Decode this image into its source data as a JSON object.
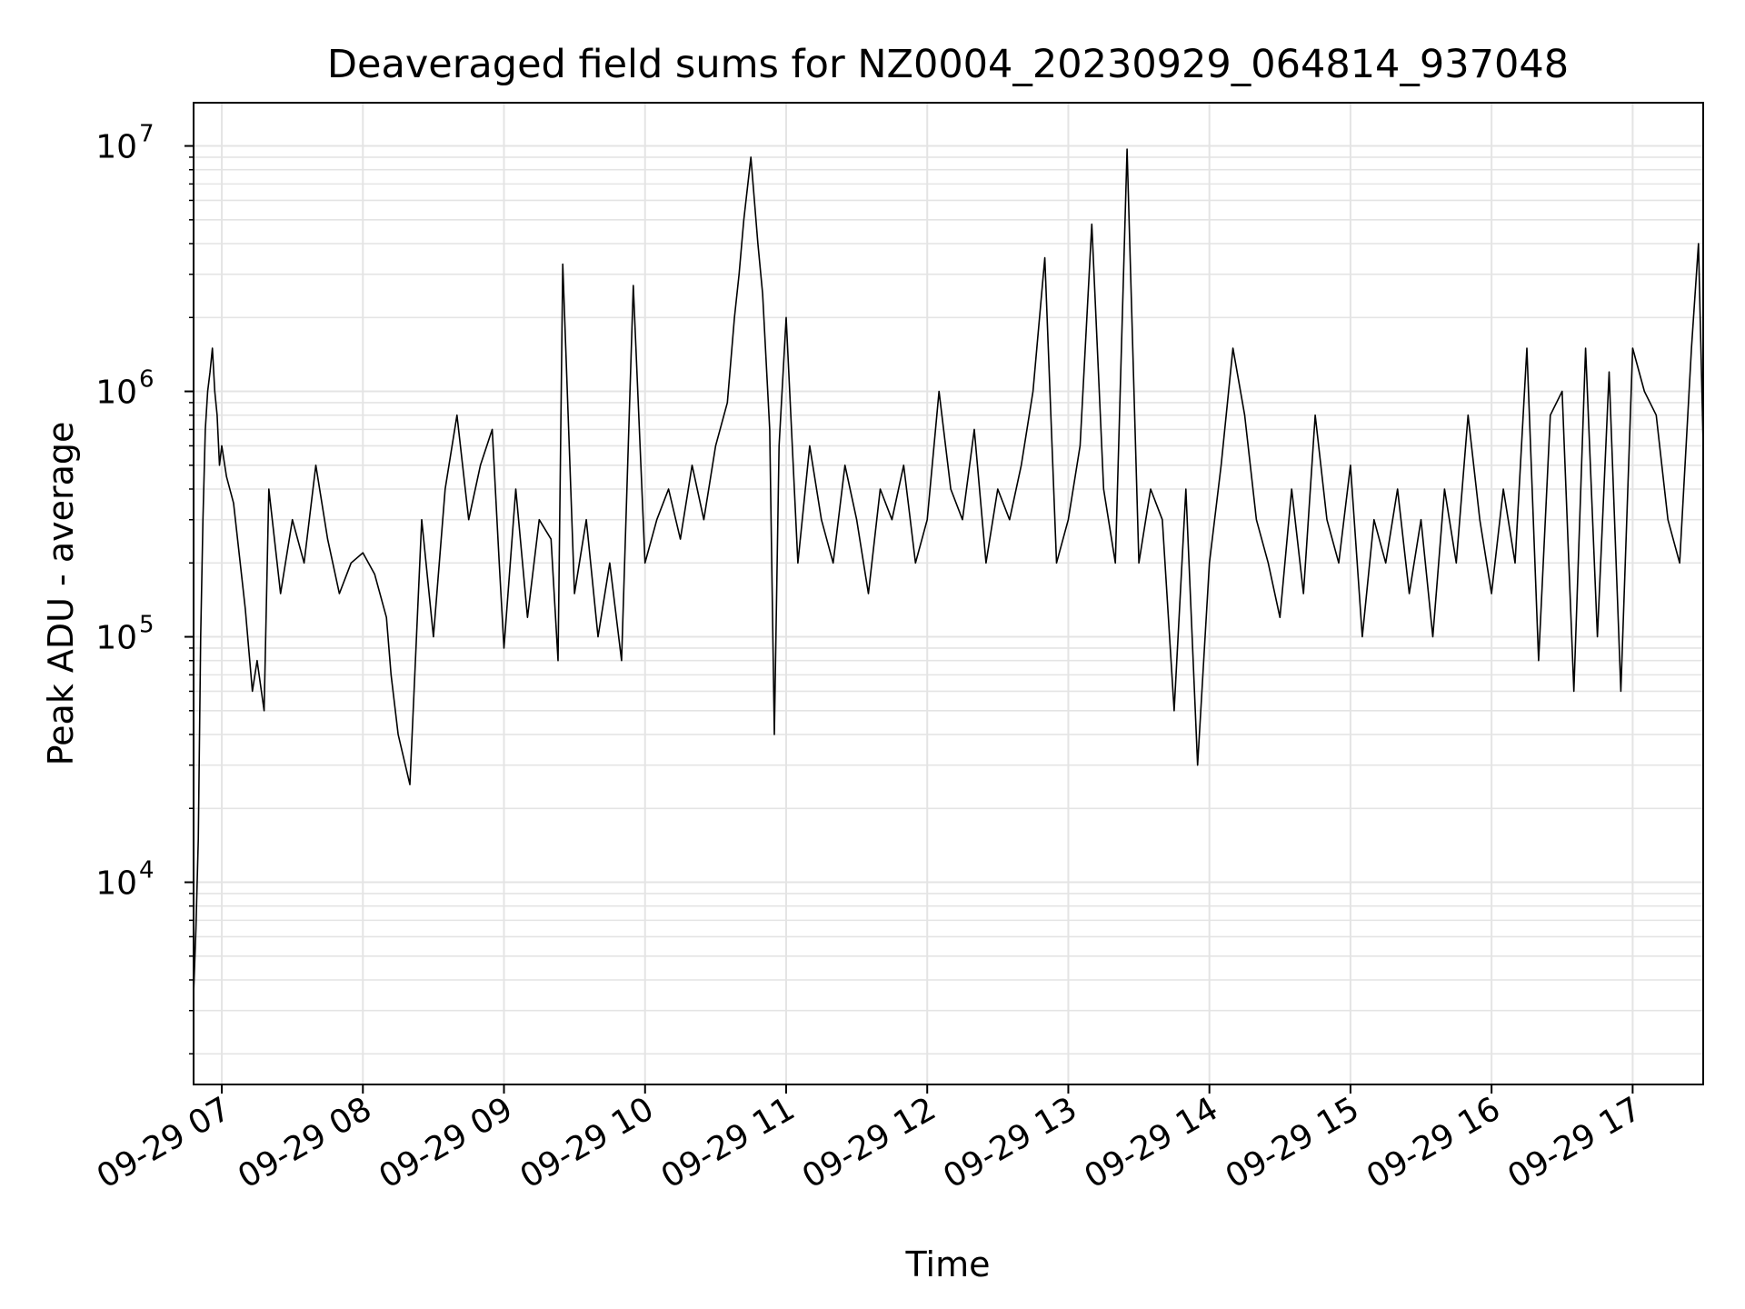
{
  "chart_data": {
    "type": "line",
    "title": "Deaveraged field sums for NZ0004_20230929_064814_937048",
    "xlabel": "Time",
    "ylabel": "Peak ADU - average",
    "yscale": "log",
    "ylim": [
      1500,
      15000000
    ],
    "xlim": [
      "2023-09-29 06:48",
      "2023-09-29 17:30"
    ],
    "grid": true,
    "line_color": "#000000",
    "x_ticks": [
      "2023-09-29 07:00",
      "2023-09-29 08:00",
      "2023-09-29 09:00",
      "2023-09-29 10:00",
      "2023-09-29 11:00",
      "2023-09-29 12:00",
      "2023-09-29 13:00",
      "2023-09-29 14:00",
      "2023-09-29 15:00",
      "2023-09-29 16:00",
      "2023-09-29 17:00"
    ],
    "x_tick_labels": [
      "09-29 07",
      "09-29 08",
      "09-29 09",
      "09-29 10",
      "09-29 11",
      "09-29 12",
      "09-29 13",
      "09-29 14",
      "09-29 15",
      "09-29 16",
      "09-29 17"
    ],
    "y_ticks": [
      10000,
      100000,
      1000000,
      10000000
    ],
    "y_tick_labels": [
      {
        "base": "10",
        "exp": "4"
      },
      {
        "base": "10",
        "exp": "5"
      },
      {
        "base": "10",
        "exp": "6"
      },
      {
        "base": "10",
        "exp": "7"
      }
    ],
    "series": [
      {
        "x": [
          "2023-09-29 06:48",
          "2023-09-29 06:49",
          "2023-09-29 06:50",
          "2023-09-29 06:51",
          "2023-09-29 06:52",
          "2023-09-29 06:53",
          "2023-09-29 06:54",
          "2023-09-29 06:55",
          "2023-09-29 06:56",
          "2023-09-29 06:57",
          "2023-09-29 06:58",
          "2023-09-29 06:59",
          "2023-09-29 07:00",
          "2023-09-29 07:02",
          "2023-09-29 07:05",
          "2023-09-29 07:10",
          "2023-09-29 07:13",
          "2023-09-29 07:15",
          "2023-09-29 07:18",
          "2023-09-29 07:20",
          "2023-09-29 07:25",
          "2023-09-29 07:30",
          "2023-09-29 07:35",
          "2023-09-29 07:40",
          "2023-09-29 07:45",
          "2023-09-29 07:50",
          "2023-09-29 07:55",
          "2023-09-29 08:00",
          "2023-09-29 08:05",
          "2023-09-29 08:10",
          "2023-09-29 08:12",
          "2023-09-29 08:15",
          "2023-09-29 08:20",
          "2023-09-29 08:25",
          "2023-09-29 08:30",
          "2023-09-29 08:35",
          "2023-09-29 08:40",
          "2023-09-29 08:45",
          "2023-09-29 08:50",
          "2023-09-29 08:55",
          "2023-09-29 08:58",
          "2023-09-29 09:00",
          "2023-09-29 09:05",
          "2023-09-29 09:10",
          "2023-09-29 09:15",
          "2023-09-29 09:20",
          "2023-09-29 09:23",
          "2023-09-29 09:25",
          "2023-09-29 09:30",
          "2023-09-29 09:35",
          "2023-09-29 09:40",
          "2023-09-29 09:45",
          "2023-09-29 09:50",
          "2023-09-29 09:55",
          "2023-09-29 10:00",
          "2023-09-29 10:05",
          "2023-09-29 10:10",
          "2023-09-29 10:15",
          "2023-09-29 10:20",
          "2023-09-29 10:25",
          "2023-09-29 10:30",
          "2023-09-29 10:35",
          "2023-09-29 10:38",
          "2023-09-29 10:40",
          "2023-09-29 10:42",
          "2023-09-29 10:45",
          "2023-09-29 10:48",
          "2023-09-29 10:50",
          "2023-09-29 10:53",
          "2023-09-29 10:55",
          "2023-09-29 10:57",
          "2023-09-29 11:00",
          "2023-09-29 11:05",
          "2023-09-29 11:10",
          "2023-09-29 11:15",
          "2023-09-29 11:20",
          "2023-09-29 11:25",
          "2023-09-29 11:30",
          "2023-09-29 11:35",
          "2023-09-29 11:40",
          "2023-09-29 11:45",
          "2023-09-29 11:50",
          "2023-09-29 11:55",
          "2023-09-29 12:00",
          "2023-09-29 12:05",
          "2023-09-29 12:10",
          "2023-09-29 12:15",
          "2023-09-29 12:20",
          "2023-09-29 12:25",
          "2023-09-29 12:30",
          "2023-09-29 12:35",
          "2023-09-29 12:40",
          "2023-09-29 12:45",
          "2023-09-29 12:50",
          "2023-09-29 12:55",
          "2023-09-29 13:00",
          "2023-09-29 13:05",
          "2023-09-29 13:10",
          "2023-09-29 13:15",
          "2023-09-29 13:20",
          "2023-09-29 13:25",
          "2023-09-29 13:30",
          "2023-09-29 13:35",
          "2023-09-29 13:40",
          "2023-09-29 13:45",
          "2023-09-29 13:50",
          "2023-09-29 13:55",
          "2023-09-29 14:00",
          "2023-09-29 14:05",
          "2023-09-29 14:10",
          "2023-09-29 14:15",
          "2023-09-29 14:20",
          "2023-09-29 14:25",
          "2023-09-29 14:30",
          "2023-09-29 14:35",
          "2023-09-29 14:40",
          "2023-09-29 14:45",
          "2023-09-29 14:50",
          "2023-09-29 14:55",
          "2023-09-29 15:00",
          "2023-09-29 15:05",
          "2023-09-29 15:10",
          "2023-09-29 15:15",
          "2023-09-29 15:20",
          "2023-09-29 15:25",
          "2023-09-29 15:30",
          "2023-09-29 15:35",
          "2023-09-29 15:40",
          "2023-09-29 15:45",
          "2023-09-29 15:50",
          "2023-09-29 15:55",
          "2023-09-29 16:00",
          "2023-09-29 16:05",
          "2023-09-29 16:10",
          "2023-09-29 16:15",
          "2023-09-29 16:20",
          "2023-09-29 16:25",
          "2023-09-29 16:30",
          "2023-09-29 16:35",
          "2023-09-29 16:40",
          "2023-09-29 16:45",
          "2023-09-29 16:50",
          "2023-09-29 16:55",
          "2023-09-29 17:00",
          "2023-09-29 17:05",
          "2023-09-29 17:10",
          "2023-09-29 17:15",
          "2023-09-29 17:20",
          "2023-09-29 17:25",
          "2023-09-29 17:28",
          "2023-09-29 17:30"
        ],
        "y": [
          3500,
          6500,
          15000,
          100000,
          300000,
          700000,
          1000000,
          1200000,
          1500000,
          1000000,
          800000,
          500000,
          600000,
          450000,
          350000,
          130000,
          60000,
          80000,
          50000,
          400000,
          150000,
          300000,
          200000,
          500000,
          250000,
          150000,
          200000,
          220000,
          180000,
          120000,
          70000,
          40000,
          25000,
          300000,
          100000,
          400000,
          800000,
          300000,
          500000,
          700000,
          200000,
          90000,
          400000,
          120000,
          300000,
          250000,
          80000,
          3300000,
          150000,
          300000,
          100000,
          200000,
          80000,
          2700000,
          200000,
          300000,
          400000,
          250000,
          500000,
          300000,
          600000,
          900000,
          2000000,
          3000000,
          5000000,
          9000000,
          4000000,
          2500000,
          700000,
          40000,
          600000,
          2000000,
          200000,
          600000,
          300000,
          200000,
          500000,
          300000,
          150000,
          400000,
          300000,
          500000,
          200000,
          300000,
          1000000,
          400000,
          300000,
          700000,
          200000,
          400000,
          300000,
          500000,
          1000000,
          3500000,
          200000,
          300000,
          600000,
          4800000,
          400000,
          200000,
          9700000,
          200000,
          400000,
          300000,
          50000,
          400000,
          30000,
          200000,
          500000,
          1500000,
          800000,
          300000,
          200000,
          120000,
          400000,
          150000,
          800000,
          300000,
          200000,
          500000,
          100000,
          300000,
          200000,
          400000,
          150000,
          300000,
          100000,
          400000,
          200000,
          800000,
          300000,
          150000,
          400000,
          200000,
          1500000,
          80000,
          800000,
          1000000,
          60000,
          1500000,
          100000,
          1200000,
          60000,
          1500000,
          1000000,
          800000,
          300000,
          200000,
          1500000,
          4000000,
          600000
        ]
      }
    ]
  }
}
